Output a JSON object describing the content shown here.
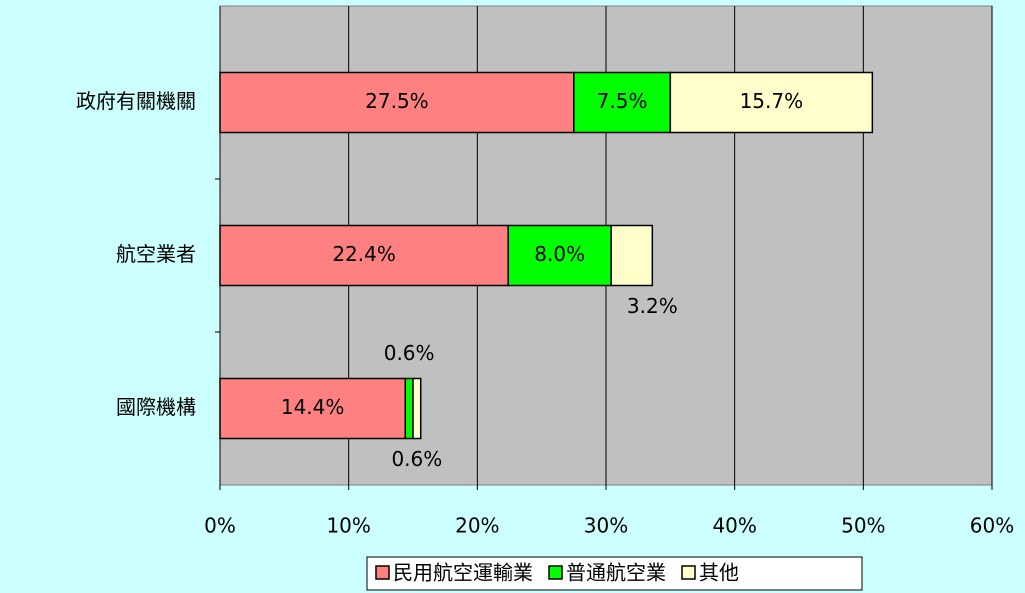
{
  "chart_data": {
    "type": "stacked-bar-horizontal",
    "categories": [
      "政府有關機關",
      "航空業者",
      "國際機構"
    ],
    "series": [
      {
        "name": "民用航空運輸業",
        "color": "#ff8080",
        "values": [
          27.5,
          22.4,
          14.4
        ],
        "value_labels": [
          "27.5%",
          "22.4%",
          "14.4%"
        ]
      },
      {
        "name": "普通航空業",
        "color": "#00ff00",
        "values": [
          7.5,
          8.0,
          0.6
        ],
        "value_labels": [
          "7.5%",
          "8.0%",
          "0.6%"
        ]
      },
      {
        "name": "其他",
        "color": "#ffffcc",
        "values": [
          15.7,
          3.2,
          0.6
        ],
        "value_labels": [
          "15.7%",
          "3.2%",
          "0.6%"
        ]
      }
    ],
    "xlim": [
      0,
      60
    ],
    "xticks": [
      {
        "value": 0,
        "label": "0%"
      },
      {
        "value": 10,
        "label": "10%"
      },
      {
        "value": 20,
        "label": "20%"
      },
      {
        "value": 30,
        "label": "30%"
      },
      {
        "value": 40,
        "label": "40%"
      },
      {
        "value": 50,
        "label": "50%"
      },
      {
        "value": 60,
        "label": "60%"
      }
    ],
    "grid": true,
    "legend": "bottom"
  }
}
